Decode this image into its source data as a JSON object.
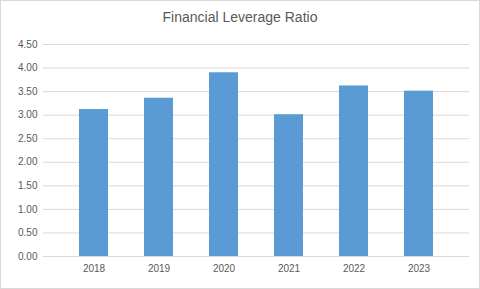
{
  "chart_data": {
    "type": "bar",
    "title": "Financial Leverage Ratio",
    "categories": [
      "2018",
      "2019",
      "2020",
      "2021",
      "2022",
      "2023"
    ],
    "values": [
      3.12,
      3.36,
      3.9,
      3.01,
      3.62,
      3.51
    ],
    "color": "#5b9bd5",
    "ylim": [
      0,
      4.5
    ],
    "yticks": [
      {
        "value": 0,
        "label": "0.00"
      },
      {
        "value": 0.5,
        "label": "0.50"
      },
      {
        "value": 1,
        "label": "1.00"
      },
      {
        "value": 1.5,
        "label": "1.50"
      },
      {
        "value": 2,
        "label": "2.00"
      },
      {
        "value": 2.5,
        "label": "2.50"
      },
      {
        "value": 3,
        "label": "3.00"
      },
      {
        "value": 3.5,
        "label": "3.50"
      },
      {
        "value": 4,
        "label": "4.00"
      },
      {
        "value": 4.5,
        "label": "4.50"
      }
    ],
    "grid": true
  }
}
